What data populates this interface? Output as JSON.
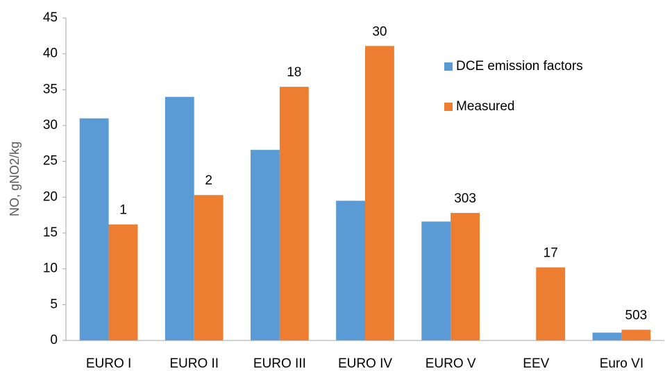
{
  "chart_data": {
    "type": "bar",
    "y_label": "NO, gNO2/kg",
    "categories": [
      "EURO I",
      "EURO II",
      "EURO III",
      "EURO IV",
      "EURO V",
      "EEV",
      "Euro VI"
    ],
    "series": [
      {
        "name": "DCE emission factors",
        "color": "#5b9bd5",
        "values": [
          31,
          34,
          26.6,
          19.5,
          16.6,
          null,
          1.1
        ]
      },
      {
        "name": "Measured",
        "color": "#ed7d31",
        "values": [
          16.2,
          20.3,
          35.4,
          41.1,
          17.8,
          10.2,
          1.5
        ]
      }
    ],
    "annotations": [
      1,
      2,
      18,
      30,
      303,
      17,
      503
    ],
    "ylim": [
      0,
      45
    ],
    "yticks": [
      0,
      5,
      10,
      15,
      20,
      25,
      30,
      35,
      40,
      45
    ],
    "grid": false,
    "legend": "upper right"
  }
}
